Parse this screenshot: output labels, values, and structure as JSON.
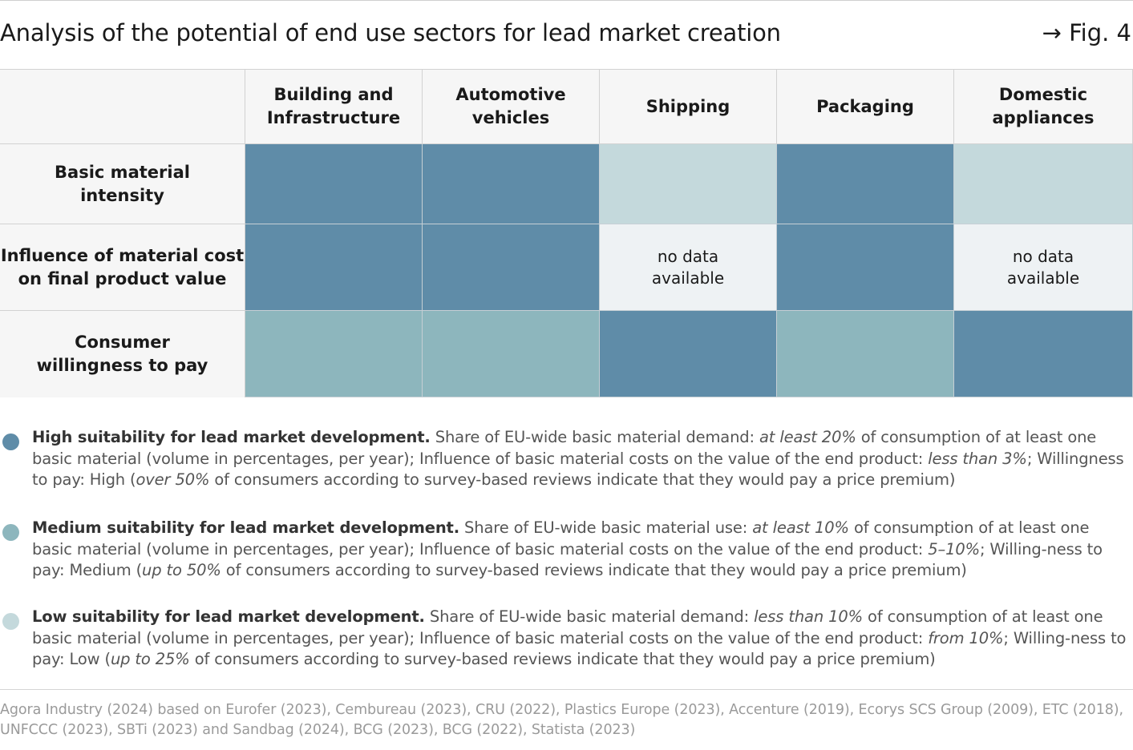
{
  "title": "Analysis of the potential of end use sectors for lead market creation",
  "figure_ref": "→ Fig. 4",
  "colors": {
    "high": "#5f8ca8",
    "medium": "#8db6bd",
    "low": "#c4d9dc",
    "no_data": "#eef2f4",
    "header_bg": "#f6f6f6"
  },
  "chart_data": {
    "type": "table",
    "columns": [
      "Building and\nInfrastructure",
      "Automotive\nvehicles",
      "Shipping",
      "Packaging",
      "Domestic\nappliances"
    ],
    "rows": [
      {
        "label": "Basic material\nintensity",
        "values": [
          "high",
          "high",
          "low",
          "high",
          "low"
        ]
      },
      {
        "label": "Influence of material cost\non final product value",
        "values": [
          "high",
          "high",
          "no_data",
          "high",
          "no_data"
        ]
      },
      {
        "label": "Consumer\nwillingness to pay",
        "values": [
          "medium",
          "medium",
          "high",
          "medium",
          "high"
        ]
      }
    ],
    "no_data_label": "no data\navailable"
  },
  "legend": [
    {
      "level": "high",
      "heading": "High suitability for lead market development.",
      "text_parts": [
        {
          "t": " Share of EU-wide basic material demand: "
        },
        {
          "t": "at least 20%",
          "i": true
        },
        {
          "t": " of consumption of at least one basic material (volume in percentages, per year); Influence of basic material costs on the value of the end product: "
        },
        {
          "t": "less than 3%",
          "i": true
        },
        {
          "t": "; Willingness to pay: High ("
        },
        {
          "t": "over 50%",
          "i": true
        },
        {
          "t": " of consumers according to survey-based reviews indicate that they would pay a price premium)"
        }
      ]
    },
    {
      "level": "medium",
      "heading": "Medium suitability for lead market development.",
      "text_parts": [
        {
          "t": " Share of EU-wide basic material use: "
        },
        {
          "t": "at least 10%",
          "i": true
        },
        {
          "t": " of consumption of at least one basic material (volume in percentages, per year); Influence of basic material costs on the value of the end product: "
        },
        {
          "t": "5–10%",
          "i": true
        },
        {
          "t": "; Willing-ness to pay: Medium ("
        },
        {
          "t": "up to 50%",
          "i": true
        },
        {
          "t": " of consumers according to survey-based reviews indicate that they would pay a price premium)"
        }
      ]
    },
    {
      "level": "low",
      "heading": "Low suitability for lead market development.",
      "text_parts": [
        {
          "t": " Share of EU-wide basic material demand: "
        },
        {
          "t": "less than 10%",
          "i": true
        },
        {
          "t": " of consumption of at least one basic material (volume in percentages, per year); Influence of basic material costs on the value of the end product: "
        },
        {
          "t": "from 10%",
          "i": true
        },
        {
          "t": "; Willing-ness to pay: Low ("
        },
        {
          "t": "up to 25%",
          "i": true
        },
        {
          "t": " of consumers according to survey-based reviews indicate that they would pay a price premium)"
        }
      ]
    }
  ],
  "source": "Agora Industry (2024) based on Eurofer (2023), Cembureau (2023), CRU (2022), Plastics Europe (2023), Accenture (2019), Ecorys SCS Group (2009), ETC (2018), UNFCCC (2023), SBTi (2023) and Sandbag (2024), BCG (2023), BCG (2022), Statista (2023)"
}
